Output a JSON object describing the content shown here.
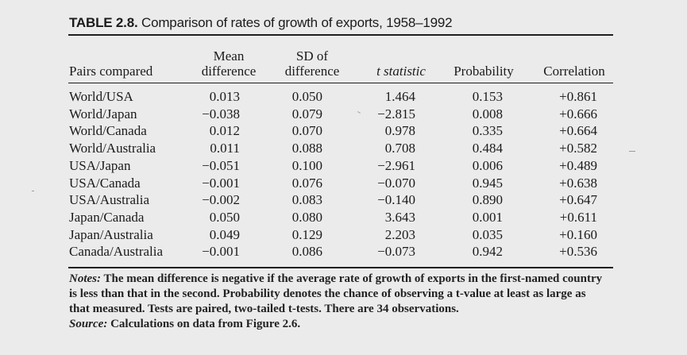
{
  "table": {
    "label": "TABLE 2.8.",
    "title": "Comparison of rates of growth of exports, 1958–1992",
    "headers": {
      "pairs": "Pairs compared",
      "mean_1": "Mean",
      "mean_2": "difference",
      "sd_1": "SD of",
      "sd_2": "difference",
      "t": "t statistic",
      "prob": "Probability",
      "corr": "Correlation"
    },
    "rows": [
      {
        "pair": "World/USA",
        "mean": "0.013",
        "sd": "0.050",
        "t": "1.464",
        "prob": "0.153",
        "corr": "+0.861"
      },
      {
        "pair": "World/Japan",
        "mean": "−0.038",
        "sd": "0.079",
        "t": "−2.815",
        "prob": "0.008",
        "corr": "+0.666"
      },
      {
        "pair": "World/Canada",
        "mean": "0.012",
        "sd": "0.070",
        "t": "0.978",
        "prob": "0.335",
        "corr": "+0.664"
      },
      {
        "pair": "World/Australia",
        "mean": "0.011",
        "sd": "0.088",
        "t": "0.708",
        "prob": "0.484",
        "corr": "+0.582"
      },
      {
        "pair": "USA/Japan",
        "mean": "−0.051",
        "sd": "0.100",
        "t": "−2.961",
        "prob": "0.006",
        "corr": "+0.489"
      },
      {
        "pair": "USA/Canada",
        "mean": "−0.001",
        "sd": "0.076",
        "t": "−0.070",
        "prob": "0.945",
        "corr": "+0.638"
      },
      {
        "pair": "USA/Australia",
        "mean": "−0.002",
        "sd": "0.083",
        "t": "−0.140",
        "prob": "0.890",
        "corr": "+0.647"
      },
      {
        "pair": "Japan/Canada",
        "mean": "0.050",
        "sd": "0.080",
        "t": "3.643",
        "prob": "0.001",
        "corr": "+0.611"
      },
      {
        "pair": "Japan/Australia",
        "mean": "0.049",
        "sd": "0.129",
        "t": "2.203",
        "prob": "0.035",
        "corr": "+0.160"
      },
      {
        "pair": "Canada/Australia",
        "mean": "−0.001",
        "sd": "0.086",
        "t": "−0.073",
        "prob": "0.942",
        "corr": "+0.536"
      }
    ]
  },
  "notes": {
    "notes_label": "Notes:",
    "notes_text": "The mean difference is negative if the average rate of growth of exports in the first-named country is less than that in the second. Probability denotes the chance of observing a t-value at least as large as that measured. Tests are paired, two-tailed t-tests. There are 34 observations.",
    "source_label": "Source:",
    "source_text": "Calculations on data from Figure 2.6."
  }
}
